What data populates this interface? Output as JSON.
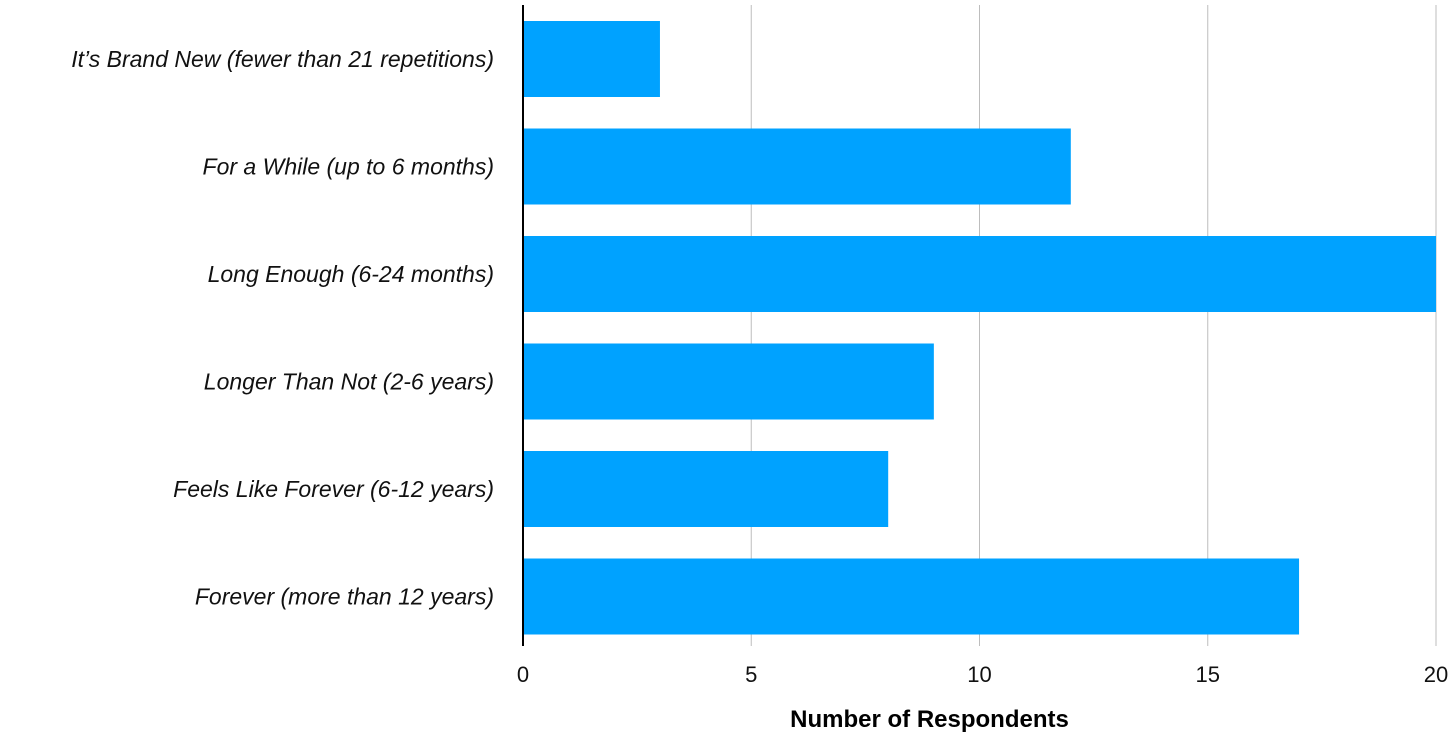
{
  "chart_data": {
    "type": "bar",
    "orientation": "horizontal",
    "categories": [
      "It’s Brand New (fewer than 21 repetitions)",
      "For a While (up to 6 months)",
      "Long Enough (6-24 months)",
      "Longer Than Not (2-6 years)",
      "Feels Like Forever (6-12 years)",
      "Forever (more than 12 years)"
    ],
    "values": [
      3,
      12,
      20,
      9,
      8,
      17
    ],
    "xlabel": "Number of Respondents",
    "ylabel": "",
    "xlim": [
      0,
      20
    ],
    "xticks": [
      "0",
      "5",
      "10",
      "15",
      "20"
    ],
    "grid": "vertical",
    "legend": "none",
    "bar_color": "#00a2ff"
  }
}
